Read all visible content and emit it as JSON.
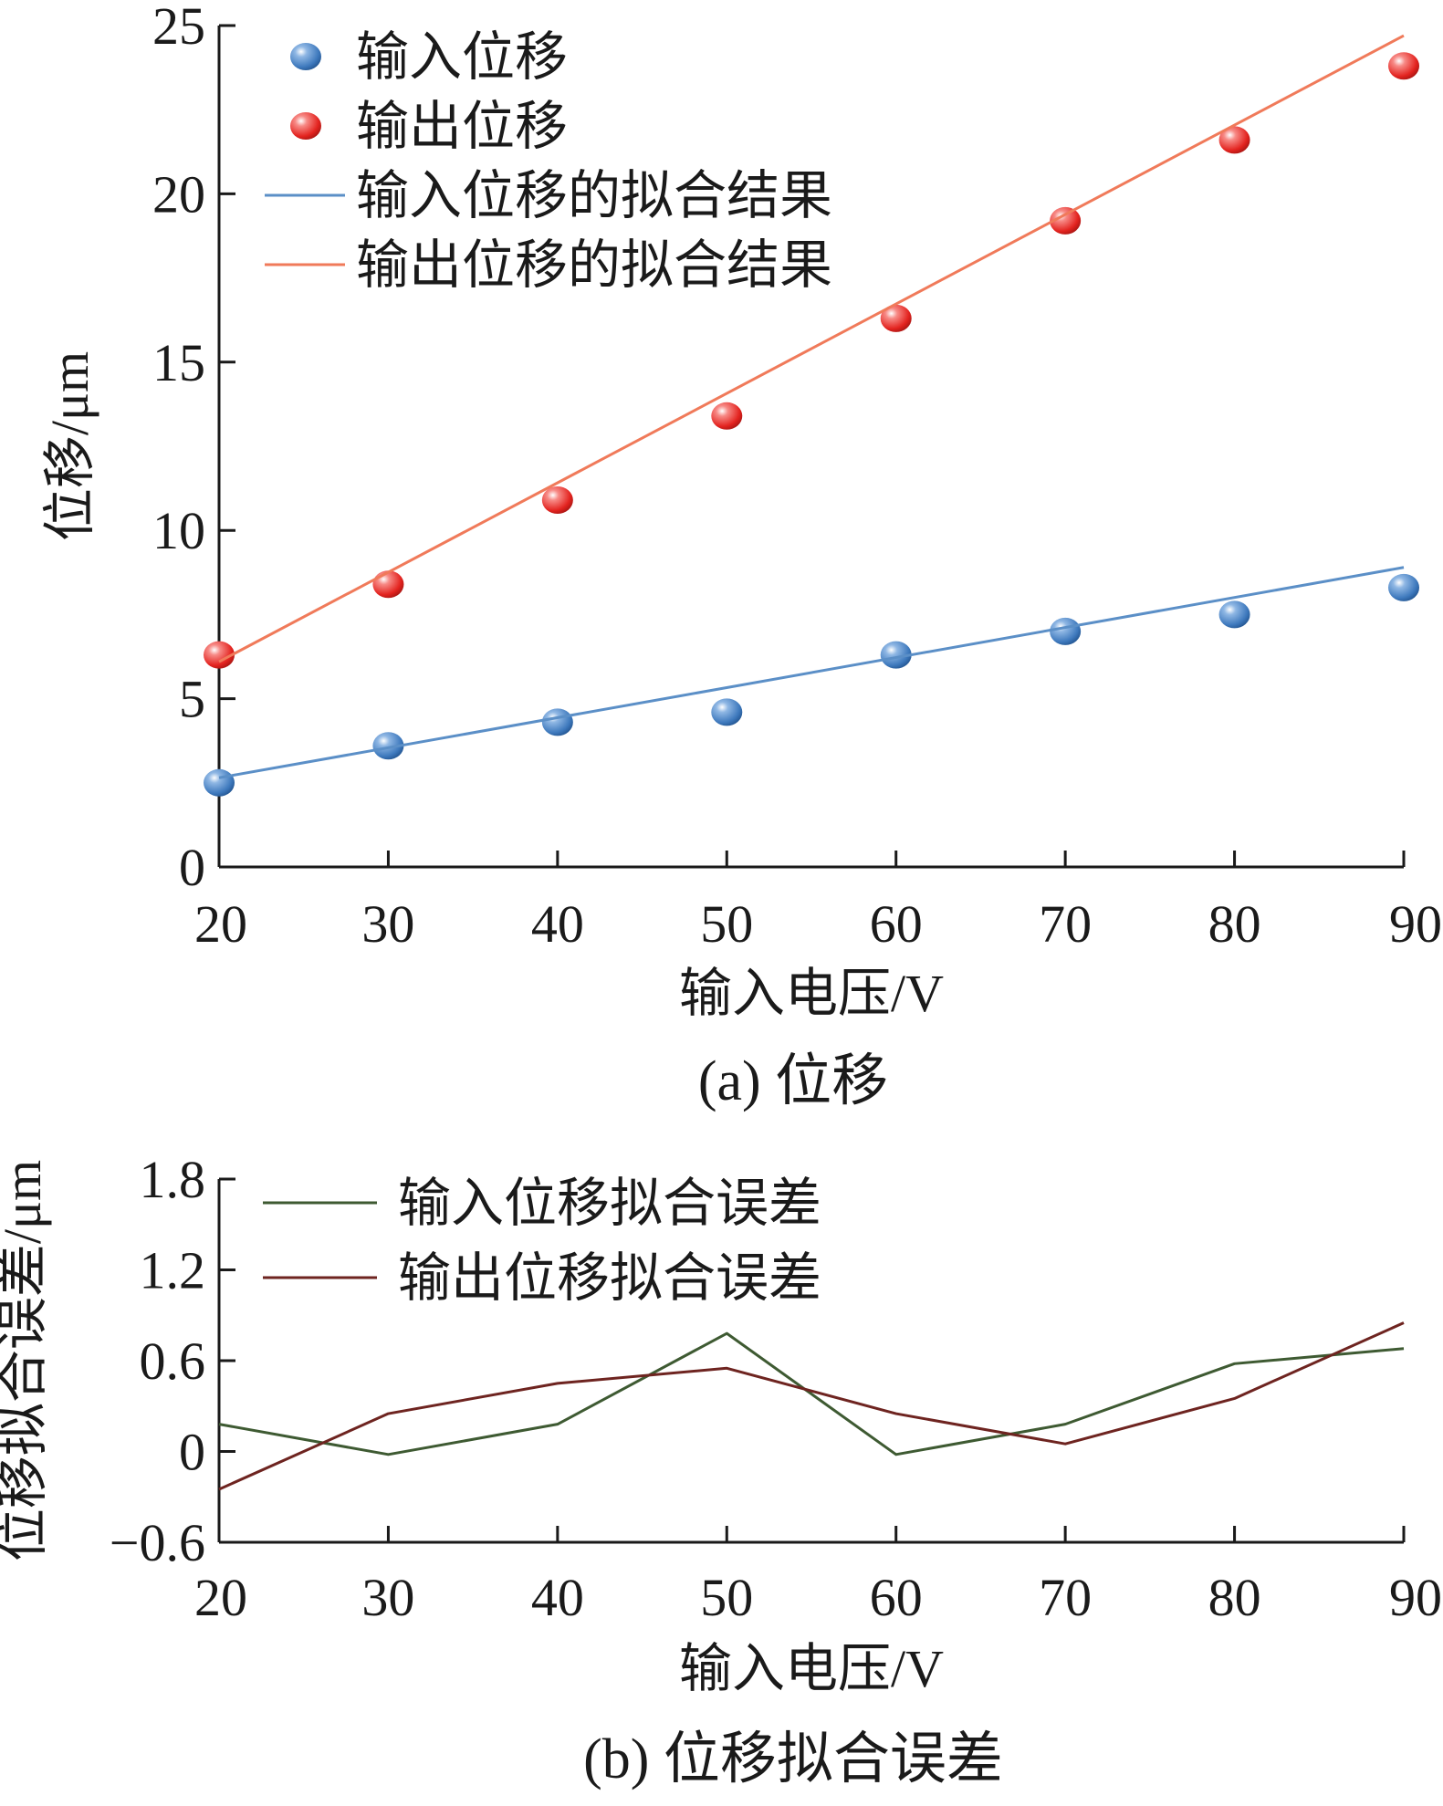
{
  "chart_data": [
    {
      "type": "scatter",
      "caption": "(a) 位移",
      "xlabel": "输入电压/V",
      "ylabel": "位移/μm",
      "xlim": [
        20,
        90
      ],
      "ylim": [
        0,
        25
      ],
      "xticks": [
        20,
        30,
        40,
        50,
        60,
        70,
        80,
        90
      ],
      "yticks": [
        0,
        5,
        10,
        15,
        20,
        25
      ],
      "legend_position": "top-left",
      "x": [
        20,
        30,
        40,
        50,
        60,
        70,
        80,
        90
      ],
      "series": [
        {
          "name": "输入位移",
          "kind": "points",
          "color": "#4a86c6",
          "values": [
            2.5,
            3.6,
            4.3,
            4.6,
            6.3,
            7.0,
            7.5,
            8.3
          ]
        },
        {
          "name": "输出位移",
          "kind": "points",
          "color": "#e8322e",
          "values": [
            6.3,
            8.4,
            10.9,
            13.4,
            16.3,
            19.2,
            21.6,
            23.8
          ]
        },
        {
          "name": "输入位移的拟合结果",
          "kind": "line",
          "color": "#5b8fc7",
          "x": [
            20,
            90
          ],
          "values": [
            2.65,
            8.9
          ]
        },
        {
          "name": "输出位移的拟合结果",
          "kind": "line",
          "color": "#f07a5a",
          "x": [
            20,
            90
          ],
          "values": [
            6.1,
            24.7
          ]
        }
      ]
    },
    {
      "type": "line",
      "caption": "(b) 位移拟合误差",
      "xlabel": "输入电压/V",
      "ylabel": "位移拟合误差/μm",
      "xlim": [
        20,
        90
      ],
      "ylim": [
        -0.6,
        1.8
      ],
      "xticks": [
        20,
        30,
        40,
        50,
        60,
        70,
        80,
        90
      ],
      "yticks": [
        -0.6,
        0,
        0.6,
        1.2,
        1.8
      ],
      "ytick_labels": [
        "−0.6",
        "0",
        "0.6",
        "1.2",
        "1.8"
      ],
      "legend_position": "top-left",
      "x": [
        20,
        30,
        40,
        50,
        60,
        70,
        80,
        90
      ],
      "series": [
        {
          "name": "输入位移拟合误差",
          "color": "#3e5a32",
          "values": [
            0.18,
            -0.02,
            0.18,
            0.78,
            -0.02,
            0.18,
            0.58,
            0.68
          ]
        },
        {
          "name": "输出位移拟合误差",
          "color": "#6e2420",
          "values": [
            -0.25,
            0.25,
            0.45,
            0.55,
            0.25,
            0.05,
            0.35,
            0.85
          ]
        }
      ]
    }
  ]
}
